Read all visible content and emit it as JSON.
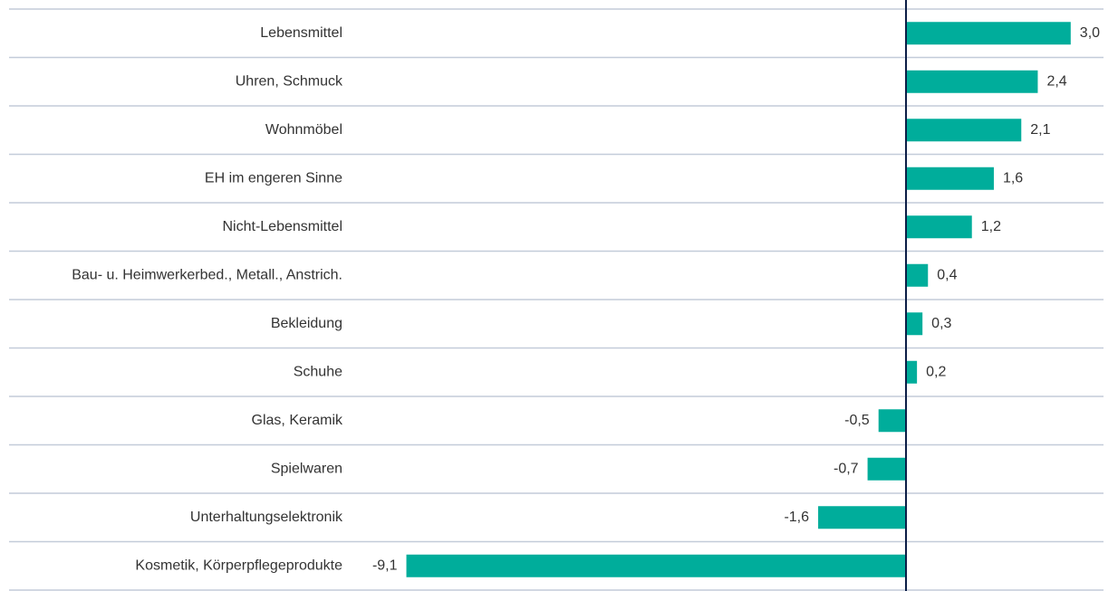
{
  "chart_data": {
    "type": "bar",
    "orientation": "horizontal",
    "categories": [
      "Lebensmittel",
      "Uhren, Schmuck",
      "Wohnmöbel",
      "EH im engeren Sinne",
      "Nicht-Lebensmittel",
      "Bau- u. Heimwerkerbed., Metall., Anstrich.",
      "Bekleidung",
      "Schuhe",
      "Glas, Keramik",
      "Spielwaren",
      "Unterhaltungselektronik",
      "Kosmetik, Körperpflegeprodukte"
    ],
    "values": [
      3.0,
      2.4,
      2.1,
      1.6,
      1.2,
      0.4,
      0.3,
      0.2,
      -0.5,
      -0.7,
      -1.6,
      -9.1
    ],
    "value_labels": [
      "3,0",
      "2,4",
      "2,1",
      "1,6",
      "1,2",
      "0,4",
      "0,3",
      "0,2",
      "-0,5",
      "-0,7",
      "-1,6",
      "-9,1"
    ],
    "color": "#00ad9b"
  }
}
